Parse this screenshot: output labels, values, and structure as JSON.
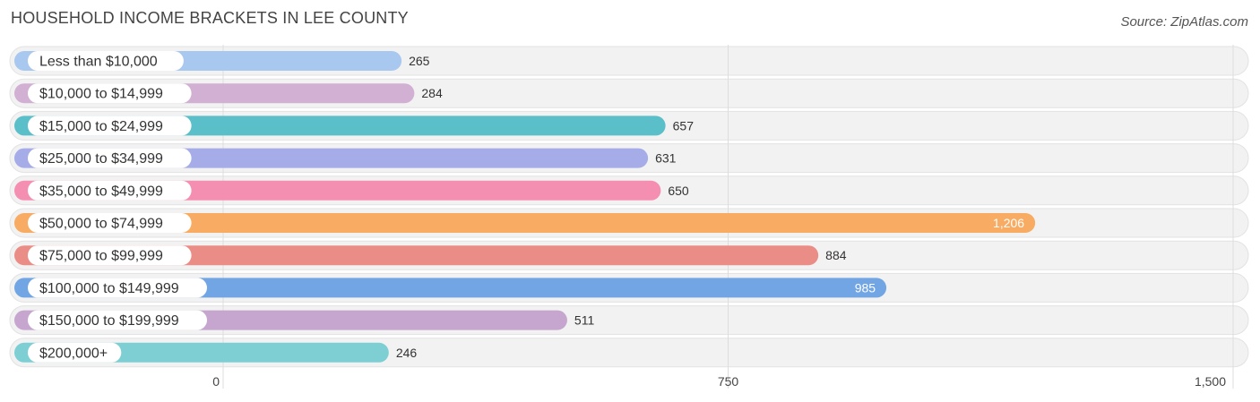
{
  "header": {
    "title": "HOUSEHOLD INCOME BRACKETS IN LEE COUNTY",
    "source": "Source: ZipAtlas.com"
  },
  "chart_data": {
    "type": "bar",
    "orientation": "horizontal",
    "title": "HOUSEHOLD INCOME BRACKETS IN LEE COUNTY",
    "categories": [
      "Less than $10,000",
      "$10,000 to $14,999",
      "$15,000 to $24,999",
      "$25,000 to $34,999",
      "$35,000 to $49,999",
      "$50,000 to $74,999",
      "$75,000 to $99,999",
      "$100,000 to $149,999",
      "$150,000 to $199,999",
      "$200,000+"
    ],
    "values": [
      265,
      284,
      657,
      631,
      650,
      1206,
      884,
      985,
      511,
      246
    ],
    "value_labels": [
      "265",
      "284",
      "657",
      "631",
      "650",
      "1,206",
      "884",
      "985",
      "511",
      "246"
    ],
    "colors": [
      "#a8c8ef",
      "#d2b0d3",
      "#5bbfca",
      "#a5ace8",
      "#f58fb2",
      "#f8ab62",
      "#eb8d87",
      "#72a5e3",
      "#c6a6cf",
      "#7ecfd4"
    ],
    "xlim": [
      0,
      1500
    ],
    "xticks": [
      0,
      750,
      1500
    ],
    "xtick_labels": [
      "0",
      "750",
      "1,500"
    ],
    "grid": true
  }
}
